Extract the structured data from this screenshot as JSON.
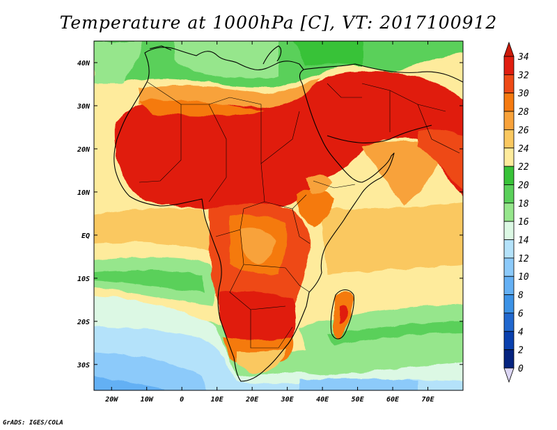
{
  "title": "Temperature at 1000hPa [C], VT: 2017100912",
  "credit": "GrADS: IGES/COLA",
  "map": {
    "lon_range": [
      -25,
      80
    ],
    "lat_range": [
      -36,
      45
    ],
    "lat_ticks": [
      {
        "label": "40N",
        "lat": 40
      },
      {
        "label": "30N",
        "lat": 30
      },
      {
        "label": "20N",
        "lat": 20
      },
      {
        "label": "10N",
        "lat": 10
      },
      {
        "label": "EQ",
        "lat": 0
      },
      {
        "label": "10S",
        "lat": -10
      },
      {
        "label": "20S",
        "lat": -20
      },
      {
        "label": "30S",
        "lat": -30
      }
    ],
    "lon_ticks": [
      {
        "label": "20W",
        "lon": -20
      },
      {
        "label": "10W",
        "lon": -10
      },
      {
        "label": "0",
        "lon": 0
      },
      {
        "label": "10E",
        "lon": 10
      },
      {
        "label": "20E",
        "lon": 20
      },
      {
        "label": "30E",
        "lon": 30
      },
      {
        "label": "40E",
        "lon": 40
      },
      {
        "label": "50E",
        "lon": 50
      },
      {
        "label": "60E",
        "lon": 60
      },
      {
        "label": "70E",
        "lon": 70
      }
    ]
  },
  "colorbar": {
    "labels": [
      "34",
      "32",
      "30",
      "28",
      "26",
      "24",
      "22",
      "20",
      "18",
      "16",
      "14",
      "12",
      "10",
      "8",
      "6",
      "4",
      "2",
      "0"
    ],
    "colors": [
      "#e01e10",
      "#ee4a16",
      "#f57a10",
      "#f8a23a",
      "#fac860",
      "#feeb9c",
      "#38c238",
      "#5ad05a",
      "#96e68c",
      "#dcf8e4",
      "#b4e2fa",
      "#8ccafa",
      "#64b0f4",
      "#3c92e6",
      "#2168cf",
      "#0a40ae",
      "#05237f"
    ],
    "top_arrow": "#cc1a0a",
    "bottom_arrow": "#dcd6f4"
  }
}
